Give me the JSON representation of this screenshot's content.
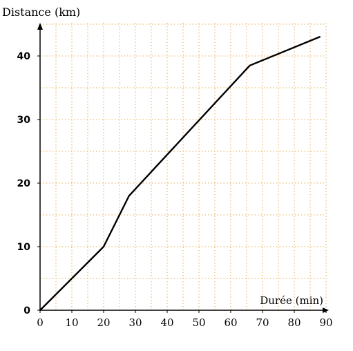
{
  "chart_data": {
    "type": "line",
    "ylabel": "Distance (km)",
    "xlabel": "Durée (min)",
    "xlim": [
      0,
      90
    ],
    "ylim": [
      0,
      45
    ],
    "x_ticks": [
      "0",
      "10",
      "20",
      "30",
      "40",
      "50",
      "60",
      "70",
      "80",
      "90"
    ],
    "y_ticks": [
      "0",
      "10",
      "20",
      "30",
      "40"
    ],
    "grid": true,
    "grid_color": "#e8a94a",
    "line_color": "#000000",
    "series": [
      {
        "x": [
          0,
          20,
          28,
          66,
          88
        ],
        "y": [
          0,
          10,
          18,
          38.5,
          43
        ]
      }
    ]
  }
}
